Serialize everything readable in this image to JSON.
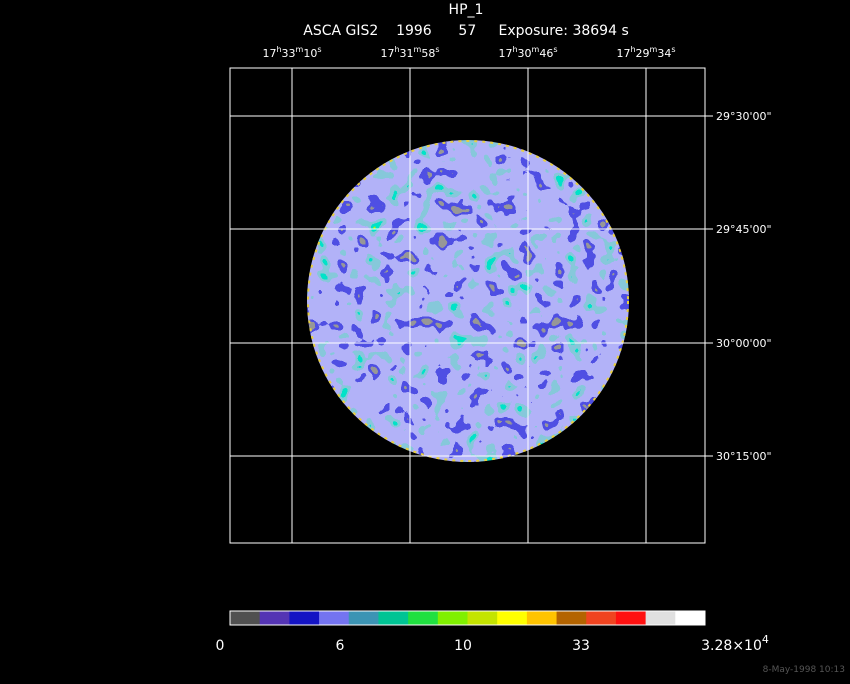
{
  "image": {
    "title": "HP_1",
    "subtitle": "ASCA GIS2    1996      57     Exposure: 38694 s",
    "ra_labels": [
      [
        "17",
        "h",
        "33",
        "m",
        "10",
        "s"
      ],
      [
        "17",
        "h",
        "31",
        "m",
        "58",
        "s"
      ],
      [
        "17",
        "h",
        "30",
        "m",
        "46",
        "s"
      ],
      [
        "17",
        "h",
        "29",
        "m",
        "34",
        "s"
      ]
    ],
    "dec_labels": [
      "29°30'00\"",
      "29°45'00\"",
      "30°00'00\"",
      "30°15'00\""
    ],
    "colorbar": {
      "colors": [
        "#505050",
        "#5434b4",
        "#1414c4",
        "#7474f0",
        "#3c94b4",
        "#00c494",
        "#20e040",
        "#80f000",
        "#c4e400",
        "#ffff00",
        "#ffc400",
        "#b46400",
        "#f04420",
        "#ff1010",
        "#e0e0e0",
        "#ffffff"
      ],
      "labels": [
        "0",
        "6",
        "10",
        "33"
      ],
      "max_label": {
        "mantissa": "3.28×10",
        "exp": "4"
      }
    },
    "timestamp": "8-May-1998 10:13"
  }
}
